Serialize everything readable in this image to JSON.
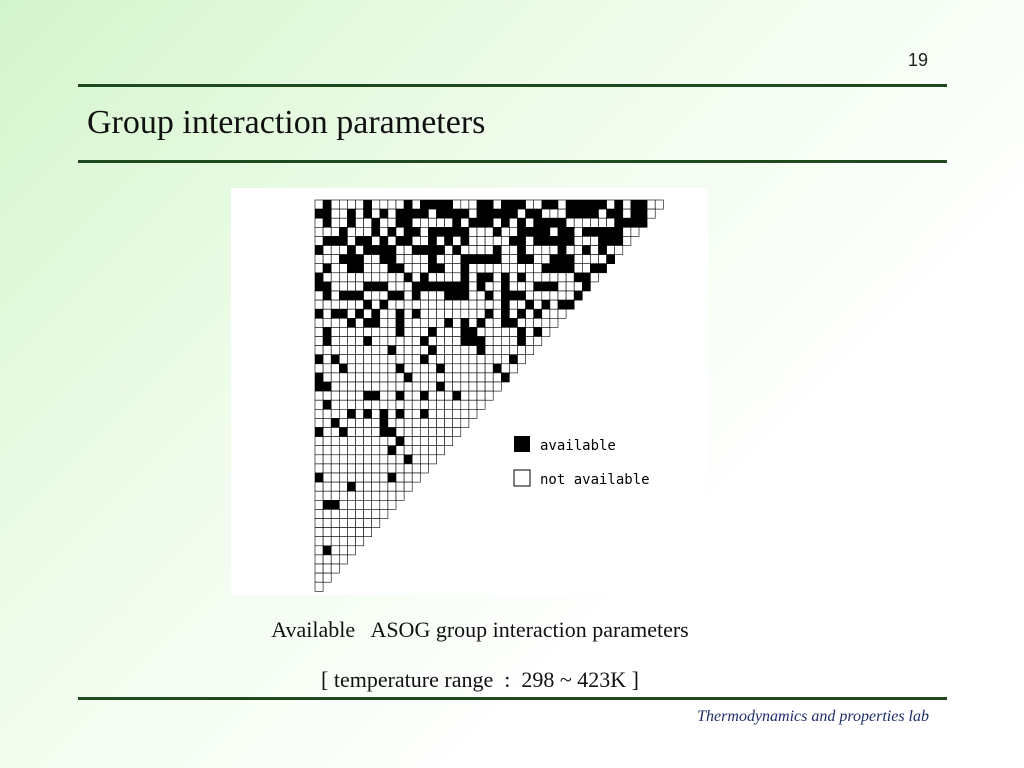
{
  "header": {
    "page_number": "19",
    "title": "Group interaction parameters"
  },
  "figure": {
    "legend": {
      "available": "available",
      "not_available": "not available"
    },
    "caption": [
      "Available   ASOG group interaction parameters",
      "[ temperature range  :  298 ~ 423K ]"
    ]
  },
  "footer": {
    "lab": "Thermodynamics and properties lab"
  }
}
